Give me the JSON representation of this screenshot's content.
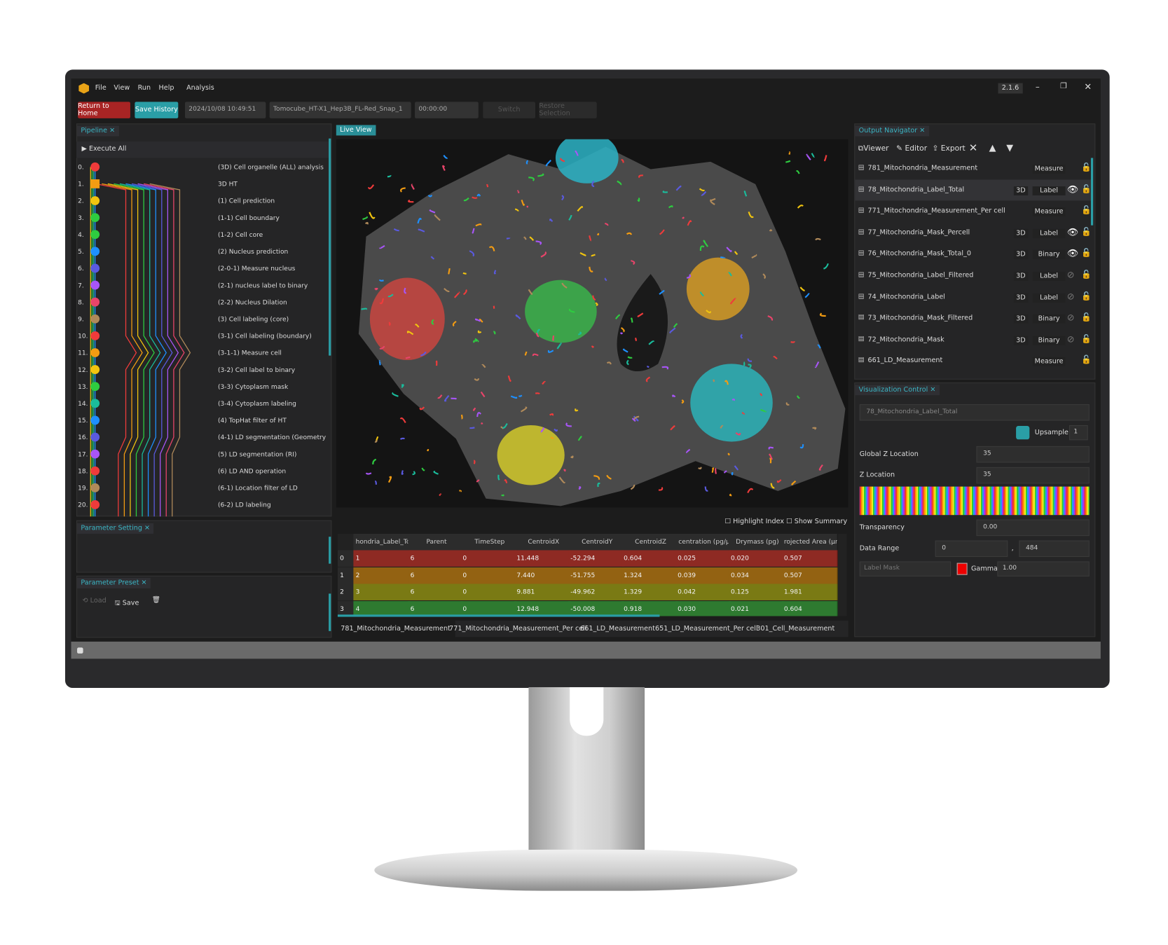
{
  "window": {
    "version": "2.1.6",
    "menu": [
      "File",
      "View",
      "Run",
      "Help",
      "Analysis"
    ]
  },
  "toolbar": {
    "return_home": "Return to Home",
    "save_history": "Save History",
    "datetime": "2024/10/08 10:49:51",
    "dataset": "Tomocube_HT-X1_Hep3B_FL-Red_Snap_1",
    "time": "00:00:00",
    "switch": "Switch",
    "restore": "Restore Selection"
  },
  "pipeline": {
    "title": "Pipeline",
    "execute": "Execute All",
    "steps": [
      {
        "index": "0.",
        "label": "(3D) Cell organelle (ALL) analysis"
      },
      {
        "index": "1.",
        "label": "3D HT"
      },
      {
        "index": "2.",
        "label": "(1) Cell prediction"
      },
      {
        "index": "3.",
        "label": "(1-1) Cell boundary"
      },
      {
        "index": "4.",
        "label": "(1-2) Cell core"
      },
      {
        "index": "5.",
        "label": "(2) Nucleus prediction"
      },
      {
        "index": "6.",
        "label": "(2-0-1) Measure nucleus"
      },
      {
        "index": "7.",
        "label": "(2-1) nucleus label to binary"
      },
      {
        "index": "8.",
        "label": "(2-2) Nucleus Dilation"
      },
      {
        "index": "9.",
        "label": "(3) Cell labeling (core)"
      },
      {
        "index": "10.",
        "label": "(3-1) Cell labeling (boundary)"
      },
      {
        "index": "11.",
        "label": "(3-1-1) Measure cell"
      },
      {
        "index": "12.",
        "label": "(3-2) Cell label to binary"
      },
      {
        "index": "13.",
        "label": "(3-3) Cytoplasm mask"
      },
      {
        "index": "14.",
        "label": "(3-4) Cytoplasm labeling"
      },
      {
        "index": "15.",
        "label": "(4) TopHat filter of HT"
      },
      {
        "index": "16.",
        "label": "(4-1) LD segmentation (Geometry)"
      },
      {
        "index": "17.",
        "label": "(5) LD segmentation (RI)"
      },
      {
        "index": "18.",
        "label": "(6) LD AND operation"
      },
      {
        "index": "19.",
        "label": "(6-1) Location filter of LD"
      },
      {
        "index": "20.",
        "label": "(6-2) LD labeling"
      }
    ]
  },
  "parameter_setting": {
    "title": "Parameter Setting"
  },
  "parameter_preset": {
    "title": "Parameter Preset",
    "load": "Load",
    "save": "Save"
  },
  "live_view": {
    "title": "Live View",
    "highlight": "Highlight Index",
    "summary": "Show Summary"
  },
  "table": {
    "columns": [
      "hondria_Label_Tc",
      "Parent",
      "TimeStep",
      "CentroidX",
      "CentroidY",
      "CentroidZ",
      "centration (pg/μ",
      "Drymass (pg)",
      "rojected Area (μm"
    ],
    "rows": [
      [
        "0",
        "1",
        "6",
        "0",
        "11.448",
        "-52.294",
        "0.604",
        "0.025",
        "0.020",
        "0.507"
      ],
      [
        "1",
        "2",
        "6",
        "0",
        "7.440",
        "-51.755",
        "1.324",
        "0.039",
        "0.034",
        "0.507"
      ],
      [
        "2",
        "3",
        "6",
        "0",
        "9.881",
        "-49.962",
        "1.329",
        "0.042",
        "0.125",
        "1.981"
      ],
      [
        "3",
        "4",
        "6",
        "0",
        "12.948",
        "-50.008",
        "0.918",
        "0.030",
        "0.021",
        "0.604"
      ]
    ]
  },
  "tabs": [
    "781_Mitochondria_Measurement",
    "771_Mitochondria_Measurement_Per cell",
    "661_LD_Measurement",
    "651_LD_Measurement_Per cell",
    "301_Cell_Measurement"
  ],
  "output_navigator": {
    "title": "Output Navigator",
    "viewer": "Viewer",
    "editor": "Editor",
    "export": "Export",
    "items": [
      {
        "name": "781_Mitochondria_Measurement",
        "type": "Measure"
      },
      {
        "name": "78_Mitochondria_Label_Total",
        "dim": "3D",
        "type": "Label",
        "visible": true
      },
      {
        "name": "771_Mitochondria_Measurement_Per cell",
        "type": "Measure"
      },
      {
        "name": "77_Mitochondria_Mask_Percell",
        "dim": "3D",
        "type": "Label",
        "visible": true
      },
      {
        "name": "76_Mitochondria_Mask_Total_0",
        "dim": "3D",
        "type": "Binary",
        "visible": true
      },
      {
        "name": "75_Mitochondria_Label_Filtered",
        "dim": "3D",
        "type": "Label",
        "visible": false
      },
      {
        "name": "74_Mitochondria_Label",
        "dim": "3D",
        "type": "Label",
        "visible": false
      },
      {
        "name": "73_Mitochondria_Mask_Filtered",
        "dim": "3D",
        "type": "Binary",
        "visible": false
      },
      {
        "name": "72_Mitochondria_Mask",
        "dim": "3D",
        "type": "Binary",
        "visible": false
      },
      {
        "name": "661_LD_Measurement",
        "type": "Measure"
      }
    ]
  },
  "visualization_control": {
    "title": "Visualization Control",
    "target": "78_Mitochondria_Label_Total",
    "upsample": "Upsample",
    "upsample_value": "1",
    "global_z": "Global Z Location",
    "global_z_value": "35",
    "z": "Z Location",
    "z_value": "35",
    "transparency": "Transparency",
    "transparency_value": "0.00",
    "data_range": "Data Range",
    "range_min": "0",
    "range_separator": ",",
    "range_max": "484",
    "label_mask": "Label Mask",
    "gamma": "Gamma",
    "gamma_value": "1.00"
  }
}
